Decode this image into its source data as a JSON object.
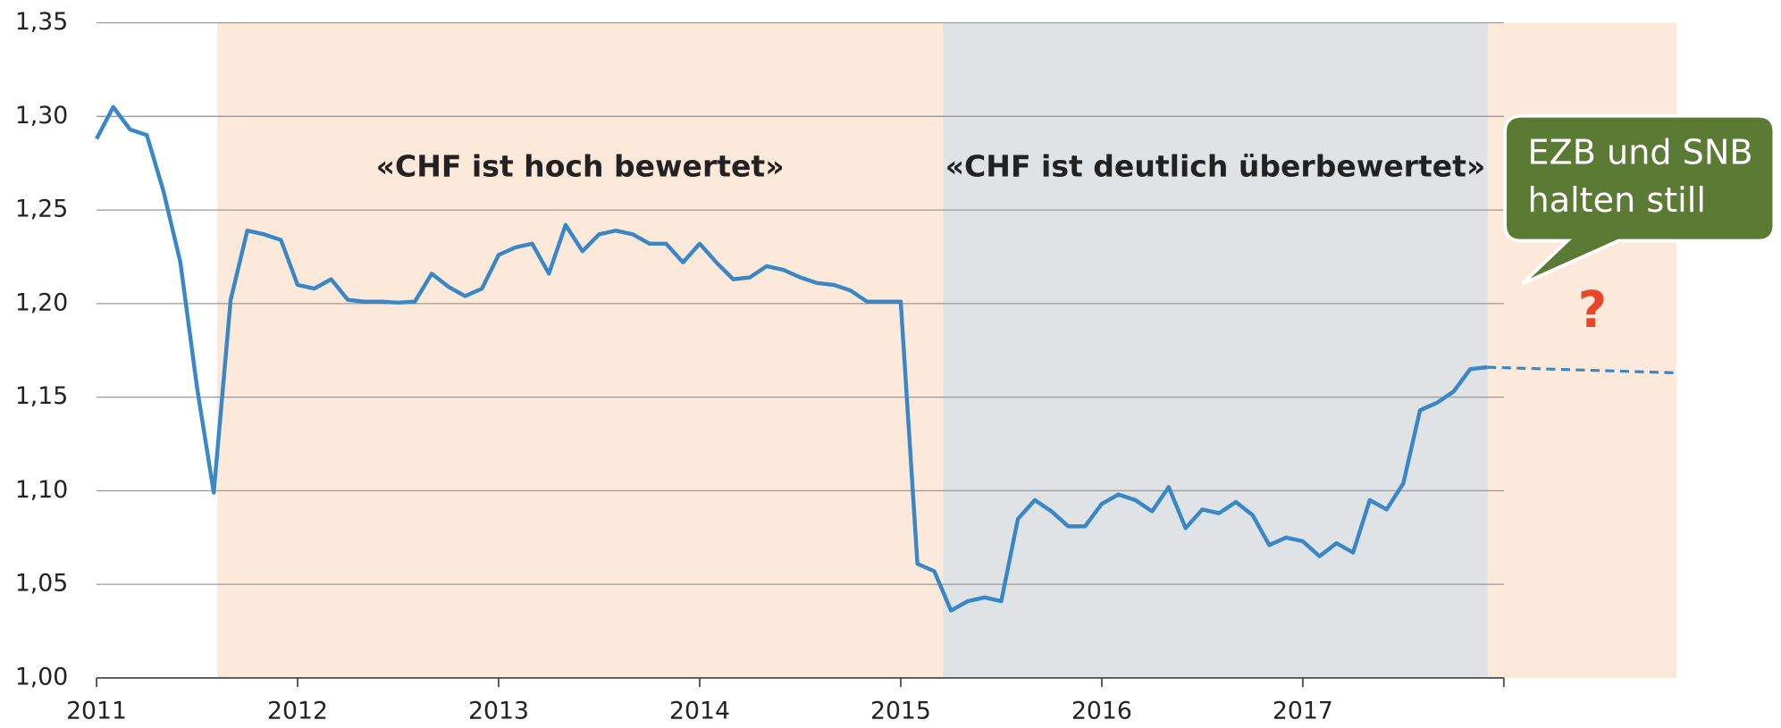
{
  "chart_data": {
    "type": "line",
    "xlim": [
      2011,
      2018.86
    ],
    "ylim": [
      1.0,
      1.35
    ],
    "xticks": [
      2011,
      2012,
      2013,
      2014,
      2015,
      2016,
      2017
    ],
    "unlabeled_xticks": [
      2018
    ],
    "yticks": [
      {
        "value": 1.0,
        "label": "1,00"
      },
      {
        "value": 1.05,
        "label": "1,05"
      },
      {
        "value": 1.1,
        "label": "1,10"
      },
      {
        "value": 1.15,
        "label": "1,15"
      },
      {
        "value": 1.2,
        "label": "1,20"
      },
      {
        "value": 1.25,
        "label": "1,25"
      },
      {
        "value": 1.3,
        "label": "1,30"
      },
      {
        "value": 1.35,
        "label": "1,35"
      }
    ],
    "grid": true,
    "regions": [
      {
        "start": 2011.6,
        "end": 2015.21,
        "color": "#fde9d9",
        "label": "«CHF ist hoch bewertet»"
      },
      {
        "start": 2015.21,
        "end": 2017.92,
        "color": "#e0e3e6",
        "label": "«CHF ist deutlich überbewertet»"
      },
      {
        "start": 2017.92,
        "end": 2018.86,
        "color": "#fde9d9"
      }
    ],
    "callout": {
      "lines": [
        "EZB und SNB",
        "halten still"
      ],
      "color": "#5b7a34"
    },
    "question_mark": {
      "text": "?",
      "color": "#e8462a"
    },
    "series": [
      {
        "color": "#3a87c8",
        "dashed": false,
        "x": [
          2011,
          2011.083,
          2011.167,
          2011.25,
          2011.333,
          2011.417,
          2011.5,
          2011.583,
          2011.667,
          2011.75,
          2011.833,
          2011.917,
          2012,
          2012.083,
          2012.167,
          2012.25,
          2012.333,
          2012.417,
          2012.5,
          2012.583,
          2012.667,
          2012.75,
          2012.833,
          2012.917,
          2013,
          2013.083,
          2013.167,
          2013.25,
          2013.333,
          2013.417,
          2013.5,
          2013.583,
          2013.667,
          2013.75,
          2013.833,
          2013.917,
          2014,
          2014.083,
          2014.167,
          2014.25,
          2014.333,
          2014.417,
          2014.5,
          2014.583,
          2014.667,
          2014.75,
          2014.833,
          2014.917,
          2015,
          2015.083,
          2015.167,
          2015.25,
          2015.333,
          2015.417,
          2015.5,
          2015.583,
          2015.667,
          2015.75,
          2015.833,
          2015.917,
          2016,
          2016.083,
          2016.167,
          2016.25,
          2016.333,
          2016.417,
          2016.5,
          2016.583,
          2016.667,
          2016.75,
          2016.833,
          2016.917,
          2017,
          2017.083,
          2017.167,
          2017.25,
          2017.333,
          2017.417,
          2017.5,
          2017.583,
          2017.667,
          2017.75,
          2017.833,
          2017.917
        ],
        "values": [
          1.288,
          1.305,
          1.293,
          1.29,
          1.26,
          1.222,
          1.155,
          1.099,
          1.202,
          1.239,
          1.237,
          1.234,
          1.21,
          1.208,
          1.213,
          1.202,
          1.201,
          1.201,
          1.2005,
          1.201,
          1.216,
          1.209,
          1.204,
          1.208,
          1.226,
          1.23,
          1.232,
          1.216,
          1.242,
          1.228,
          1.237,
          1.239,
          1.237,
          1.232,
          1.232,
          1.222,
          1.232,
          1.222,
          1.213,
          1.214,
          1.22,
          1.218,
          1.214,
          1.211,
          1.21,
          1.207,
          1.201,
          1.201,
          1.201,
          1.061,
          1.057,
          1.036,
          1.041,
          1.043,
          1.041,
          1.085,
          1.095,
          1.089,
          1.081,
          1.081,
          1.093,
          1.098,
          1.095,
          1.089,
          1.102,
          1.08,
          1.09,
          1.088,
          1.094,
          1.087,
          1.071,
          1.075,
          1.073,
          1.065,
          1.072,
          1.067,
          1.095,
          1.09,
          1.104,
          1.143,
          1.147,
          1.153,
          1.165,
          1.166
        ]
      },
      {
        "color": "#3a87c8",
        "dashed": true,
        "x": [
          2017.917,
          2018.86
        ],
        "values": [
          1.166,
          1.163
        ]
      }
    ]
  }
}
